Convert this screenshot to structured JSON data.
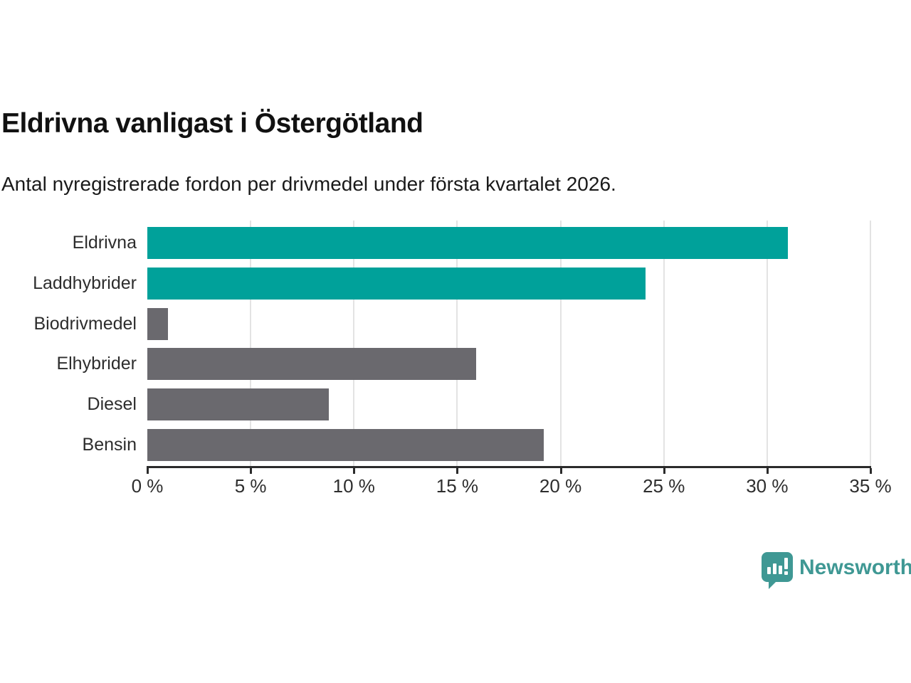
{
  "chart_data": {
    "type": "bar",
    "orientation": "horizontal",
    "title": "Eldrivna vanligast i Östergötland",
    "subtitle": "Antal nyregistrerade fordon per drivmedel under första kvartalet 2026.",
    "categories": [
      "Eldrivna",
      "Laddhybrider",
      "Biodrivmedel",
      "Elhybrider",
      "Diesel",
      "Bensin"
    ],
    "values": [
      31.0,
      24.1,
      1.0,
      15.9,
      8.8,
      19.2
    ],
    "bar_colors": [
      "#00a19a",
      "#00a19a",
      "#6a696e",
      "#6a696e",
      "#6a696e",
      "#6a696e"
    ],
    "xlabel": "",
    "ylabel": "",
    "xlim": [
      0,
      35
    ],
    "xticks": [
      0,
      5,
      10,
      15,
      20,
      25,
      30,
      35
    ],
    "xtick_labels": [
      "0 %",
      "5 %",
      "10 %",
      "15 %",
      "20 %",
      "25 %",
      "30 %",
      "35 %"
    ],
    "grid": "vertical-only",
    "legend": "none"
  },
  "colors": {
    "accent_teal": "#00a19a",
    "bar_gray": "#6a696e",
    "gridline": "#e3e3e3",
    "axis": "#2b2b2b",
    "logo_teal": "#3f9894"
  },
  "brand": {
    "logo_text": "Newsworthy",
    "logo_icon": "newsworthy-speech-bubble-chart-icon"
  }
}
